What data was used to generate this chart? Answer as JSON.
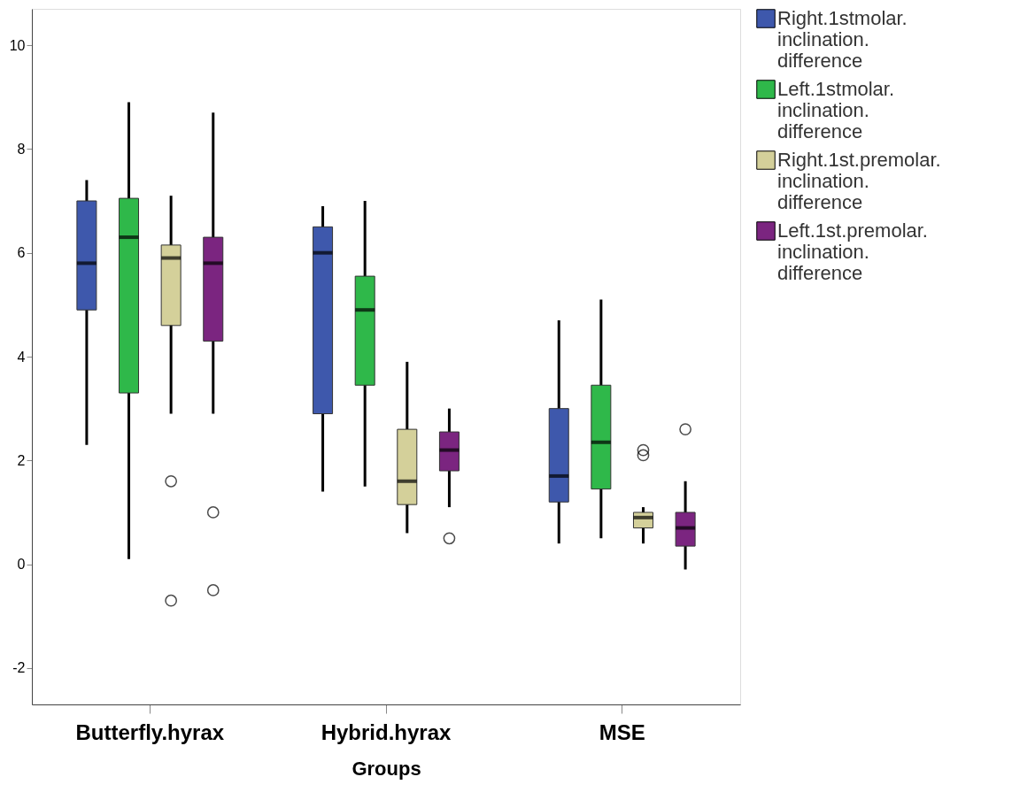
{
  "chart_data": {
    "type": "box",
    "xlabel": "Groups",
    "categories": [
      "Butterfly.hyrax",
      "Hybrid.hyrax",
      "MSE"
    ],
    "ylim": [
      -2.7,
      10.7
    ],
    "yticks": [
      -2,
      0,
      2,
      4,
      6,
      8,
      10
    ],
    "grid": false,
    "legend": "right",
    "series": [
      {
        "name": "Right.1stmolar.inclination.difference",
        "color": "#3e58ac",
        "boxes": [
          {
            "low": 2.3,
            "q1": 4.9,
            "median": 5.8,
            "q3": 7.0,
            "high": 7.4
          },
          {
            "low": 1.4,
            "q1": 2.9,
            "median": 6.0,
            "q3": 6.5,
            "high": 6.9
          },
          {
            "low": 0.4,
            "q1": 1.2,
            "median": 1.7,
            "q3": 3.0,
            "high": 4.7
          }
        ]
      },
      {
        "name": "Left.1stmolar.inclination.difference",
        "color": "#2fb84a",
        "boxes": [
          {
            "low": 0.1,
            "q1": 3.3,
            "median": 6.3,
            "q3": 7.05,
            "high": 8.9
          },
          {
            "low": 1.5,
            "q1": 3.45,
            "median": 4.9,
            "q3": 5.55,
            "high": 7.0
          },
          {
            "low": 0.5,
            "q1": 1.45,
            "median": 2.35,
            "q3": 3.45,
            "high": 5.1
          }
        ]
      },
      {
        "name": "Right.1st.premolar.inclination.difference",
        "color": "#d4d09a",
        "boxes": [
          {
            "low": 2.9,
            "q1": 4.6,
            "median": 5.9,
            "q3": 6.15,
            "high": 7.1,
            "outliers": [
              1.6,
              -0.7
            ]
          },
          {
            "low": 0.6,
            "q1": 1.15,
            "median": 1.6,
            "q3": 2.6,
            "high": 3.9
          },
          {
            "low": 0.4,
            "q1": 0.7,
            "median": 0.9,
            "q3": 1.0,
            "high": 1.1,
            "outliers": [
              2.2,
              2.1
            ]
          }
        ]
      },
      {
        "name": "Left.1st.premolar.inclination.difference",
        "color": "#7b2580",
        "boxes": [
          {
            "low": 2.9,
            "q1": 4.3,
            "median": 5.8,
            "q3": 6.3,
            "high": 8.7,
            "outliers": [
              1.0,
              -0.5
            ]
          },
          {
            "low": 1.1,
            "q1": 1.8,
            "median": 2.2,
            "q3": 2.55,
            "high": 3.0,
            "outliers": [
              0.5
            ]
          },
          {
            "low": -0.1,
            "q1": 0.35,
            "median": 0.7,
            "q3": 1.0,
            "high": 1.6,
            "outliers": [
              2.6
            ]
          }
        ]
      }
    ]
  }
}
